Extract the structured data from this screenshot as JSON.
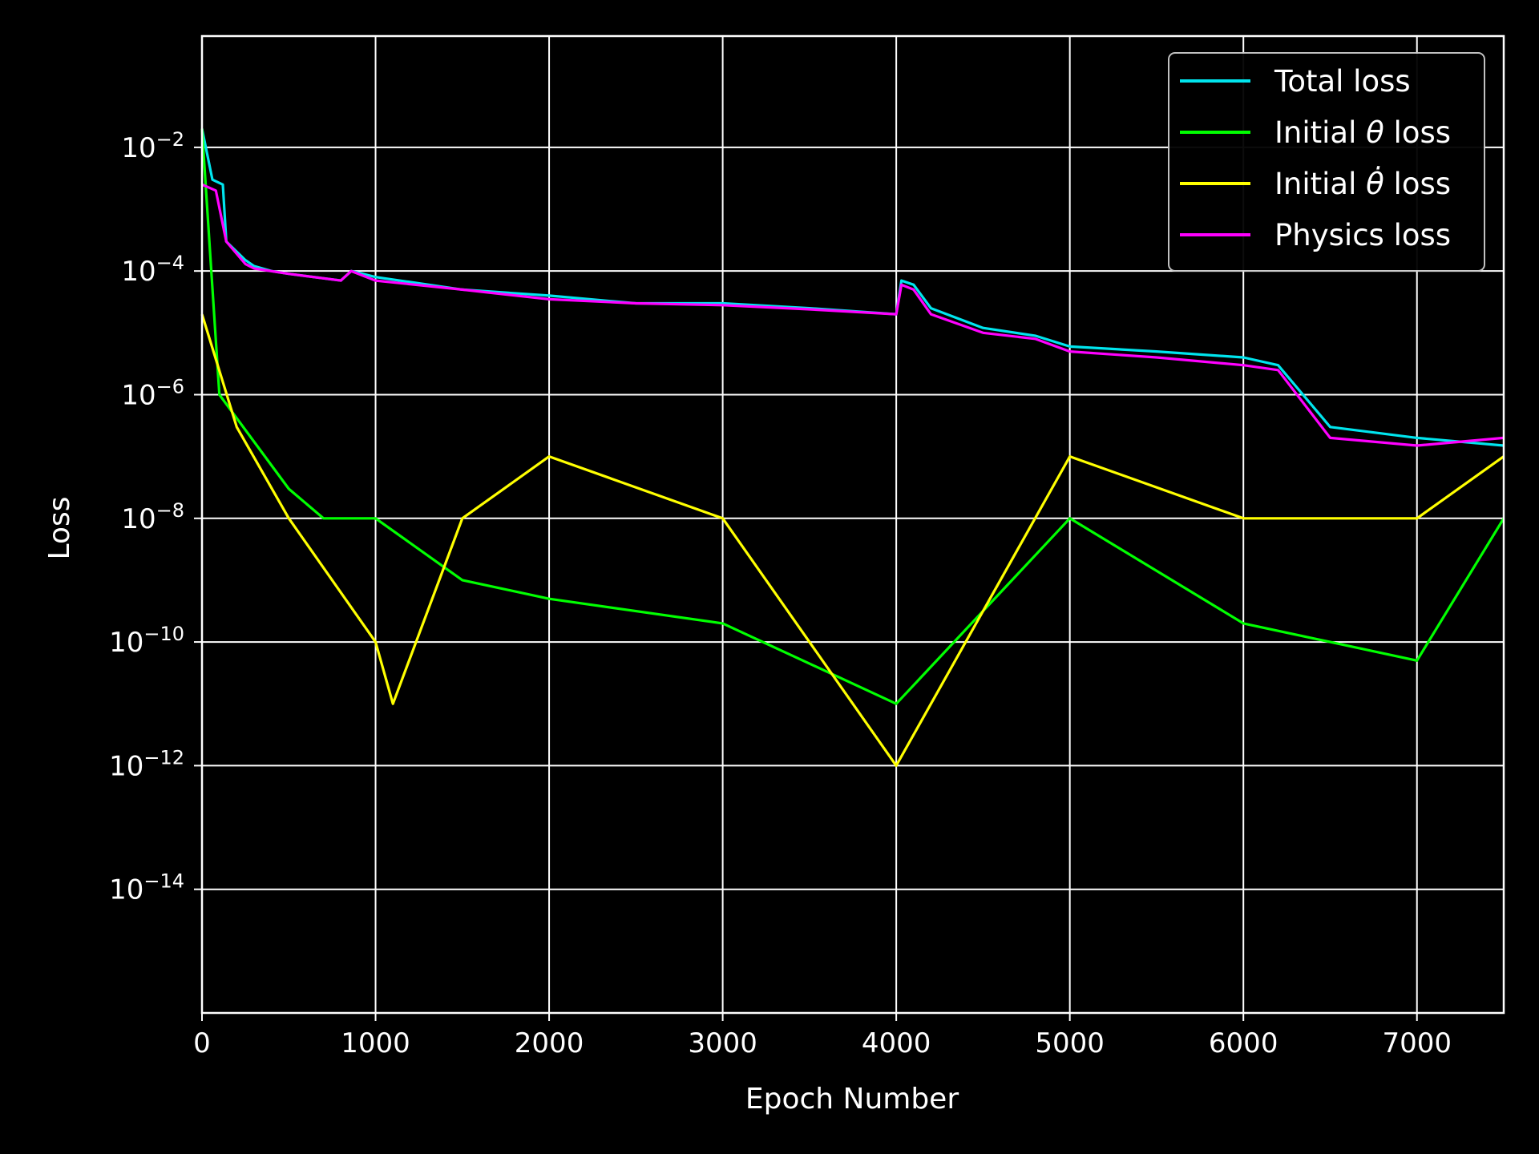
{
  "chart_data": {
    "type": "line",
    "title": "",
    "xlabel": "Epoch Number",
    "ylabel": "Loss",
    "xlim": [
      0,
      7500
    ],
    "ylim_exponent": [
      -16,
      -0.2
    ],
    "yscale": "log",
    "grid": true,
    "legend_position": "top-right",
    "background": "#000000",
    "x_ticks": [
      0,
      1000,
      2000,
      3000,
      4000,
      5000,
      6000,
      7000
    ],
    "y_ticks_exponent": [
      -2,
      -4,
      -6,
      -8,
      -10,
      -12,
      -14
    ],
    "series": [
      {
        "name": "Total loss",
        "color": "#00e5ee",
        "points": [
          [
            0,
            0.02
          ],
          [
            60,
            0.003
          ],
          [
            120,
            0.0025
          ],
          [
            140,
            0.0003
          ],
          [
            250,
            0.00015
          ],
          [
            300,
            0.00012
          ],
          [
            400,
            0.0001
          ],
          [
            500,
            9e-05
          ],
          [
            800,
            7e-05
          ],
          [
            860,
            0.0001
          ],
          [
            1000,
            8e-05
          ],
          [
            1500,
            5e-05
          ],
          [
            2000,
            4e-05
          ],
          [
            2500,
            3e-05
          ],
          [
            3000,
            3e-05
          ],
          [
            3500,
            2.5e-05
          ],
          [
            4000,
            2e-05
          ],
          [
            4030,
            7e-05
          ],
          [
            4100,
            6e-05
          ],
          [
            4200,
            2.5e-05
          ],
          [
            4500,
            1.2e-05
          ],
          [
            4800,
            9e-06
          ],
          [
            5000,
            6e-06
          ],
          [
            5500,
            5e-06
          ],
          [
            6000,
            4e-06
          ],
          [
            6200,
            3e-06
          ],
          [
            6500,
            3e-07
          ],
          [
            7000,
            2e-07
          ],
          [
            7500,
            1.5e-07
          ]
        ]
      },
      {
        "name": "Initial θ loss",
        "color": "#00ff00",
        "points": [
          [
            0,
            0.02
          ],
          [
            100,
            1e-06
          ],
          [
            500,
            3e-08
          ],
          [
            700,
            1e-08
          ],
          [
            1000,
            1e-08
          ],
          [
            1500,
            1e-09
          ],
          [
            2000,
            5e-10
          ],
          [
            3000,
            2e-10
          ],
          [
            4000,
            1e-11
          ],
          [
            5000,
            1e-08
          ],
          [
            6000,
            2e-10
          ],
          [
            7000,
            5e-11
          ],
          [
            7500,
            1e-08
          ]
        ]
      },
      {
        "name": "Initial θ̇ loss",
        "color": "#ffff00",
        "points": [
          [
            0,
            2e-05
          ],
          [
            200,
            3e-07
          ],
          [
            500,
            1e-08
          ],
          [
            1000,
            1e-10
          ],
          [
            1100,
            1e-11
          ],
          [
            1500,
            1e-08
          ],
          [
            2000,
            1e-07
          ],
          [
            3000,
            1e-08
          ],
          [
            4000,
            1e-12
          ],
          [
            5000,
            1e-07
          ],
          [
            6000,
            1e-08
          ],
          [
            7000,
            1e-08
          ],
          [
            7500,
            1e-07
          ]
        ]
      },
      {
        "name": "Physics loss",
        "color": "#ff00ff",
        "points": [
          [
            0,
            0.0025
          ],
          [
            80,
            0.002
          ],
          [
            140,
            0.0003
          ],
          [
            250,
            0.00013
          ],
          [
            300,
            0.00011
          ],
          [
            500,
            9e-05
          ],
          [
            800,
            7e-05
          ],
          [
            860,
            0.0001
          ],
          [
            1000,
            7e-05
          ],
          [
            1500,
            5e-05
          ],
          [
            2000,
            3.5e-05
          ],
          [
            2500,
            3e-05
          ],
          [
            3000,
            2.8e-05
          ],
          [
            3500,
            2.4e-05
          ],
          [
            4000,
            2e-05
          ],
          [
            4030,
            6e-05
          ],
          [
            4100,
            5e-05
          ],
          [
            4200,
            2e-05
          ],
          [
            4500,
            1e-05
          ],
          [
            4800,
            8e-06
          ],
          [
            5000,
            5e-06
          ],
          [
            5500,
            4e-06
          ],
          [
            6000,
            3e-06
          ],
          [
            6200,
            2.5e-06
          ],
          [
            6500,
            2e-07
          ],
          [
            7000,
            1.5e-07
          ],
          [
            7500,
            2e-07
          ]
        ]
      }
    ]
  },
  "legend": {
    "items": [
      {
        "label_main": "Total loss",
        "label_sym": "",
        "label_tail": "",
        "color": "#00e5ee"
      },
      {
        "label_main": "Initial ",
        "label_sym": "θ",
        "label_tail": " loss",
        "color": "#00ff00"
      },
      {
        "label_main": "Initial ",
        "label_sym": "θ̇",
        "label_tail": " loss",
        "color": "#ffff00"
      },
      {
        "label_main": "Physics loss",
        "label_sym": "",
        "label_tail": "",
        "color": "#ff00ff"
      }
    ]
  }
}
